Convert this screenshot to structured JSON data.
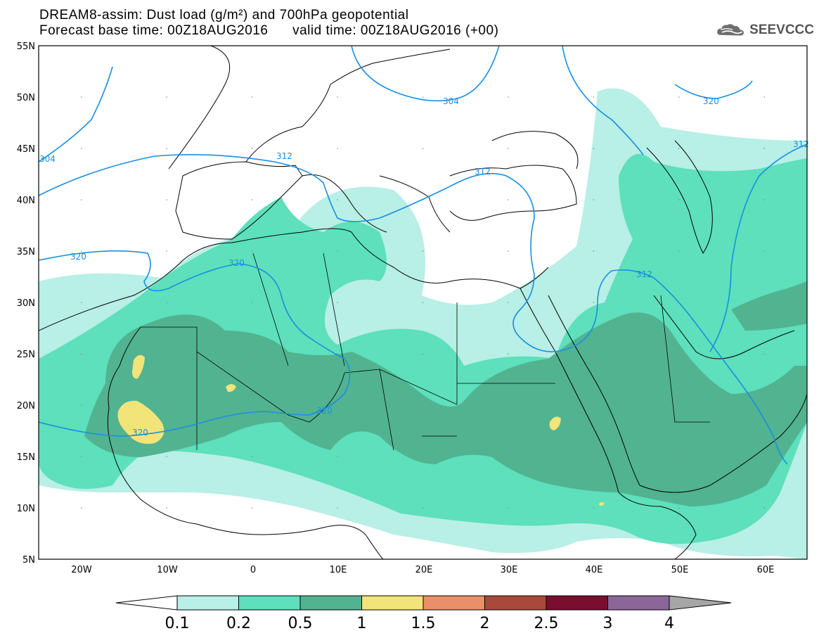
{
  "header": {
    "title_line1": "DREAM8-assim: Dust load (g/m²) and 700hPa geopotential",
    "title_line2": "Forecast base time: 00Z18AUG2016      valid time: 00Z18AUG2016 (+00)",
    "logo_text": "SEEVCCC"
  },
  "map": {
    "lon_range": [
      -25,
      65
    ],
    "lat_range": [
      5,
      55
    ],
    "lat_ticks": [
      "55N",
      "50N",
      "45N",
      "40N",
      "35N",
      "30N",
      "25N",
      "20N",
      "15N",
      "10N",
      "5N"
    ],
    "lon_ticks": [
      "20W",
      "10W",
      "0",
      "10E",
      "20E",
      "30E",
      "40E",
      "50E",
      "60E"
    ],
    "contour_labels": [
      "304",
      "312",
      "312",
      "320",
      "320",
      "320",
      "320",
      "312",
      "312",
      "320",
      "304"
    ],
    "colors": {
      "contour": "#1a8fe0",
      "coast": "#000000"
    }
  },
  "colorbar": {
    "labels": [
      "0.1",
      "0.2",
      "0.5",
      "1",
      "1.5",
      "2",
      "2.5",
      "3",
      "4"
    ],
    "colors": [
      "#b8efe6",
      "#5de0bb",
      "#52b391",
      "#f2e479",
      "#e9906a",
      "#a9493b",
      "#7a0e2f",
      "#8b6699",
      "#a6a6a6"
    ]
  }
}
